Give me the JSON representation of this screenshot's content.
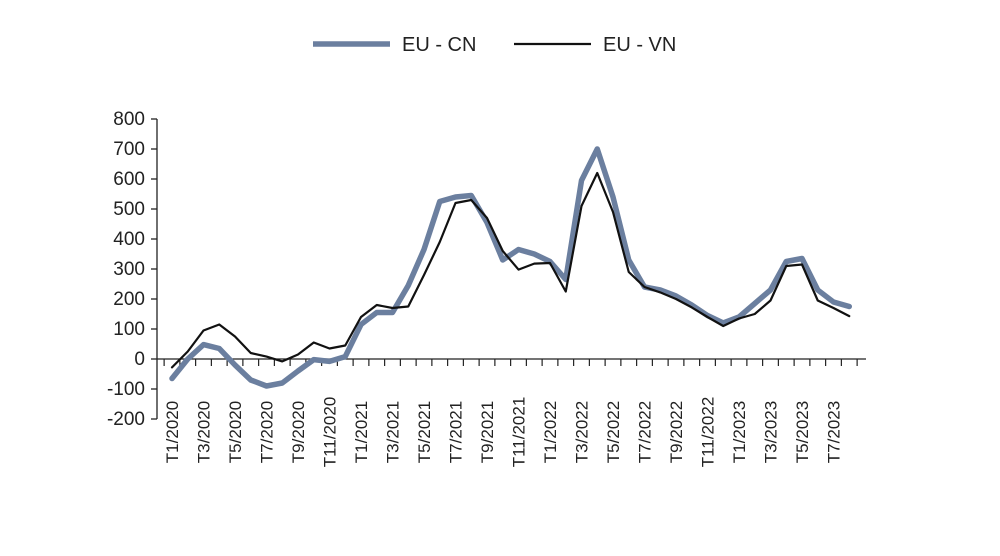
{
  "chart_data": {
    "type": "line",
    "title": "",
    "xlabel": "",
    "ylabel": "",
    "ylim": [
      -200,
      800
    ],
    "yticks": [
      "800",
      "700",
      "600",
      "500",
      "400",
      "300",
      "200",
      "100",
      "0",
      "-100",
      "-200"
    ],
    "ytick_values": [
      800,
      700,
      600,
      500,
      400,
      300,
      200,
      100,
      0,
      -100,
      -200
    ],
    "grid": false,
    "legend_position": "top-center",
    "x": [
      "T1/2020",
      "T2/2020",
      "T3/2020",
      "T4/2020",
      "T5/2020",
      "T6/2020",
      "T7/2020",
      "T8/2020",
      "T9/2020",
      "T10/2020",
      "T11/2020",
      "T12/2020",
      "T1/2021",
      "T2/2021",
      "T3/2021",
      "T4/2021",
      "T5/2021",
      "T6/2021",
      "T7/2021",
      "T8/2021",
      "T9/2021",
      "T10/2021",
      "T11/2021",
      "T12/2021",
      "T1/2022",
      "T2/2022",
      "T3/2022",
      "T4/2022",
      "T5/2022",
      "T6/2022",
      "T7/2022",
      "T8/2022",
      "T9/2022",
      "T10/2022",
      "T11/2022",
      "T12/2022",
      "T1/2023",
      "T2/2023",
      "T3/2023",
      "T4/2023",
      "T5/2023",
      "T6/2023",
      "T7/2023",
      "T8/2023"
    ],
    "x_tick_labels": [
      "T1/2020",
      "T3/2020",
      "T5/2020",
      "T7/2020",
      "T9/2020",
      "T11/2020",
      "T1/2021",
      "T3/2021",
      "T5/2021",
      "T7/2021",
      "T9/2021",
      "T11/2021",
      "T1/2022",
      "T3/2022",
      "T5/2022",
      "T7/2022",
      "T9/2022",
      "T11/2022",
      "T1/2023",
      "T3/2023",
      "T5/2023",
      "T7/2023"
    ],
    "series": [
      {
        "name": "EU - CN",
        "color": "#6b7f9f",
        "values": [
          -65,
          0,
          48,
          35,
          -20,
          -70,
          -90,
          -80,
          -40,
          -2,
          -8,
          8,
          115,
          155,
          155,
          245,
          365,
          525,
          540,
          545,
          455,
          330,
          365,
          350,
          325,
          265,
          595,
          700,
          540,
          330,
          240,
          230,
          210,
          180,
          145,
          120,
          140,
          185,
          230,
          325,
          335,
          230,
          190,
          175
        ]
      },
      {
        "name": "EU - VN",
        "color": "#111111",
        "values": [
          -28,
          25,
          95,
          115,
          75,
          20,
          8,
          -8,
          15,
          55,
          35,
          45,
          140,
          180,
          170,
          175,
          280,
          390,
          520,
          530,
          470,
          360,
          298,
          318,
          320,
          225,
          510,
          620,
          490,
          290,
          240,
          222,
          200,
          172,
          140,
          110,
          135,
          150,
          195,
          310,
          315,
          195,
          170,
          143
        ]
      }
    ]
  }
}
